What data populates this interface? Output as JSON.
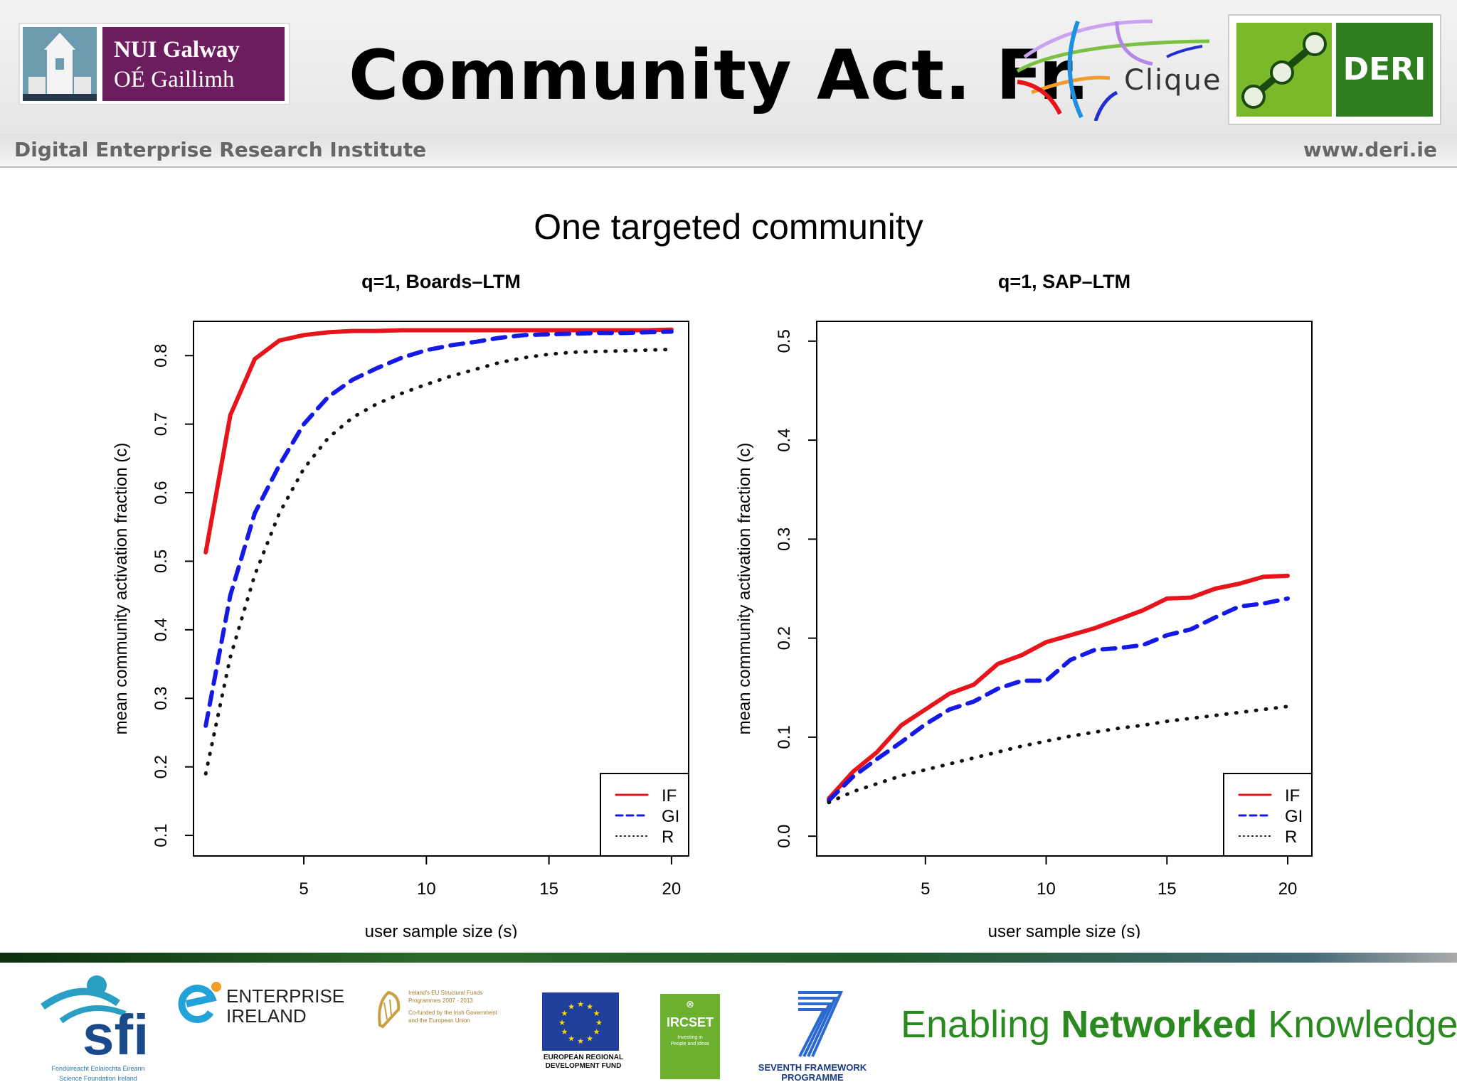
{
  "header": {
    "title": "Community Act. Fr.",
    "nui_line1": "NUI Galway",
    "nui_line2": "OÉ Gaillimh",
    "clique_label": "Clique",
    "deri_label": "DERI",
    "subtitle_left": "Digital Enterprise Research Institute",
    "subtitle_right": "www.deri.ie"
  },
  "figure_title": "One targeted community",
  "colors": {
    "IF": "#e8141c",
    "GI": "#1419e6",
    "R": "#111111",
    "brand_purple": "#6c1d5e",
    "brand_green": "#2e7d1e"
  },
  "chart_data": [
    {
      "type": "line",
      "title": "q=1, Boards–LTM",
      "xlabel": "user sample size (s)",
      "ylabel": "mean community activation fraction (c)",
      "xlim": [
        0.5,
        20.7
      ],
      "ylim": [
        0.07,
        0.85
      ],
      "xticks": [
        5,
        10,
        15,
        20
      ],
      "yticks": [
        0.1,
        0.2,
        0.3,
        0.4,
        0.5,
        0.6,
        0.7,
        0.8
      ],
      "ytick_labels": [
        "0.1",
        "0.2",
        "0.3",
        "0.4",
        "0.5",
        "0.6",
        "0.7",
        "0.8"
      ],
      "legend_position": "bottom-right",
      "x": [
        1,
        2,
        3,
        4,
        5,
        6,
        7,
        8,
        9,
        10,
        11,
        12,
        13,
        14,
        15,
        16,
        17,
        18,
        19,
        20
      ],
      "series": [
        {
          "name": "IF",
          "style": "solid",
          "values": [
            0.513,
            0.713,
            0.795,
            0.822,
            0.83,
            0.834,
            0.836,
            0.836,
            0.837,
            0.837,
            0.837,
            0.837,
            0.837,
            0.837,
            0.837,
            0.837,
            0.837,
            0.837,
            0.837,
            0.838
          ]
        },
        {
          "name": "GI",
          "style": "dashed",
          "values": [
            0.26,
            0.45,
            0.57,
            0.64,
            0.7,
            0.74,
            0.765,
            0.782,
            0.797,
            0.808,
            0.815,
            0.82,
            0.826,
            0.83,
            0.831,
            0.832,
            0.833,
            0.833,
            0.834,
            0.835
          ]
        },
        {
          "name": "R",
          "style": "dotted",
          "values": [
            0.19,
            0.36,
            0.48,
            0.57,
            0.635,
            0.68,
            0.71,
            0.73,
            0.745,
            0.758,
            0.77,
            0.78,
            0.79,
            0.797,
            0.802,
            0.805,
            0.806,
            0.807,
            0.808,
            0.809
          ]
        }
      ]
    },
    {
      "type": "line",
      "title": "q=1, SAP–LTM",
      "xlabel": "user sample size (s)",
      "ylabel": "mean community activation fraction (c)",
      "xlim": [
        0.5,
        21
      ],
      "ylim": [
        -0.02,
        0.52
      ],
      "xticks": [
        5,
        10,
        15,
        20
      ],
      "yticks": [
        0.0,
        0.1,
        0.2,
        0.3,
        0.4,
        0.5
      ],
      "ytick_labels": [
        "0.0",
        "0.1",
        "0.2",
        "0.3",
        "0.4",
        "0.5"
      ],
      "legend_position": "bottom-right",
      "x": [
        1,
        2,
        3,
        4,
        5,
        6,
        7,
        8,
        9,
        10,
        11,
        12,
        13,
        14,
        15,
        16,
        17,
        18,
        19,
        20
      ],
      "series": [
        {
          "name": "IF",
          "style": "solid",
          "values": [
            0.038,
            0.065,
            0.085,
            0.112,
            0.128,
            0.144,
            0.153,
            0.174,
            0.183,
            0.196,
            0.203,
            0.21,
            0.219,
            0.228,
            0.24,
            0.241,
            0.25,
            0.255,
            0.262,
            0.263
          ]
        },
        {
          "name": "GI",
          "style": "dashed",
          "values": [
            0.036,
            0.06,
            0.078,
            0.095,
            0.113,
            0.128,
            0.136,
            0.149,
            0.157,
            0.157,
            0.178,
            0.188,
            0.19,
            0.193,
            0.203,
            0.209,
            0.221,
            0.232,
            0.235,
            0.24
          ]
        },
        {
          "name": "R",
          "style": "dotted",
          "values": [
            0.034,
            0.045,
            0.053,
            0.061,
            0.067,
            0.073,
            0.079,
            0.085,
            0.091,
            0.096,
            0.101,
            0.105,
            0.109,
            0.112,
            0.116,
            0.119,
            0.122,
            0.125,
            0.128,
            0.131
          ]
        }
      ]
    }
  ],
  "footer": {
    "sfi_name": "sfi",
    "sfi_caption1": "Fondúireacht Eolaíochta Éireann",
    "sfi_caption2": "Science Foundation Ireland",
    "ei_line1": "ENTERPRISE",
    "ei_line2": "IRELAND",
    "ndp_line1": "Ireland's EU Structural Funds",
    "ndp_line2": "Programmes 2007 - 2013",
    "ndp_line3": "Co-funded by the Irish Government",
    "ndp_line4": "and the European Union",
    "erdf_line1": "EUROPEAN REGIONAL",
    "erdf_line2": "DEVELOPMENT FUND",
    "ircset_label": "IRCSET",
    "ircset_tag1": "Investing in",
    "ircset_tag2": "People and Ideas",
    "fp7_line1": "SEVENTH FRAMEWORK",
    "fp7_line2": "PROGRAMME",
    "tagline_part1": "Enabling ",
    "tagline_part2": "Networked",
    "tagline_part3": " Knowledge"
  }
}
